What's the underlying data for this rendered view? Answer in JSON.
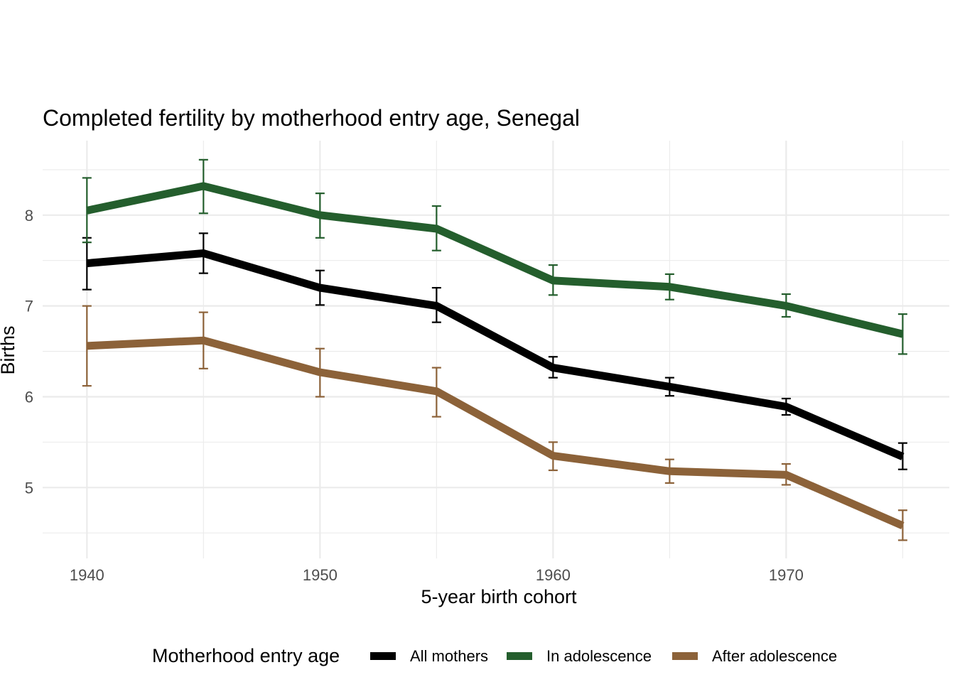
{
  "chart_data": {
    "type": "line",
    "title": "Completed fertility by motherhood entry age,  Senegal",
    "xlabel": "5-year birth cohort",
    "ylabel": "Births",
    "x": [
      1940,
      1945,
      1950,
      1955,
      1960,
      1965,
      1970,
      1975
    ],
    "xlim": [
      1938.1,
      1977.0
    ],
    "ylim": [
      4.22,
      8.82
    ],
    "x_ticks": [
      1940,
      1950,
      1960,
      1970
    ],
    "x_tick_labels": [
      "1940",
      "1950",
      "1960",
      "1970"
    ],
    "y_ticks": [
      5,
      6,
      7,
      8
    ],
    "y_tick_labels": [
      "5",
      "6",
      "7",
      "8"
    ],
    "grid": true,
    "legend": {
      "title": "Motherhood entry age",
      "placement": "bottom"
    },
    "series": [
      {
        "name": "All mothers",
        "color": "#000000",
        "values": [
          7.47,
          7.58,
          7.2,
          7.0,
          6.32,
          6.11,
          5.89,
          5.34
        ],
        "lower": [
          7.18,
          7.36,
          7.01,
          6.82,
          6.21,
          6.01,
          5.8,
          5.2
        ],
        "upper": [
          7.75,
          7.8,
          7.39,
          7.2,
          6.44,
          6.21,
          5.98,
          5.49
        ]
      },
      {
        "name": "In adolescence",
        "color": "#245e2d",
        "values": [
          8.05,
          8.32,
          8.0,
          7.85,
          7.28,
          7.21,
          7.0,
          6.69
        ],
        "lower": [
          7.7,
          8.02,
          7.75,
          7.61,
          7.12,
          7.07,
          6.88,
          6.47
        ],
        "upper": [
          8.41,
          8.61,
          8.24,
          8.1,
          7.45,
          7.35,
          7.13,
          6.91
        ]
      },
      {
        "name": "After adolescence",
        "color": "#8c6239",
        "values": [
          6.56,
          6.62,
          6.27,
          6.06,
          5.35,
          5.18,
          5.14,
          4.58
        ],
        "lower": [
          6.12,
          6.31,
          6.0,
          5.78,
          5.19,
          5.05,
          5.03,
          4.42
        ],
        "upper": [
          7.0,
          6.93,
          6.53,
          6.32,
          5.5,
          5.31,
          5.26,
          4.75
        ]
      }
    ]
  }
}
